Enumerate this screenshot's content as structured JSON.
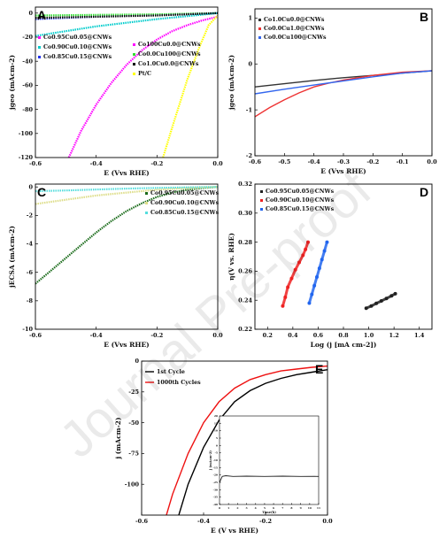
{
  "watermark": "Journal Pre-proof",
  "chart_data": [
    {
      "panel": "A",
      "type": "line",
      "xlabel": "E (Vvs RHE)",
      "ylabel": "jgeo (mAcm-2)",
      "xlim": [
        -0.6,
        0.0
      ],
      "ylim": [
        -120,
        5
      ],
      "xticks": [
        "-0.6",
        "-0.4",
        "-0.2",
        "0.0"
      ],
      "xtick_values": [
        -0.6,
        -0.4,
        -0.2,
        0.0
      ],
      "yticks": [
        "0",
        "-20",
        "-40",
        "-60",
        "-80",
        "-100",
        "-120"
      ],
      "ytick_values": [
        0,
        -20,
        -40,
        -60,
        -80,
        -100,
        -120
      ],
      "legend_left": [
        "Co0.95Cu0.05@CNWs",
        "Co0.90Cu0.10@CNWs",
        "Co0.85Cu0.15@CNWs"
      ],
      "legend_right": [
        "Co100Cu0.0@CNWs",
        "Co0.0Cu100@CNWs",
        "Co1.0Cu0.0@CNWs",
        "Pt/C"
      ],
      "series": [
        {
          "name": "Co0.95Cu0.05@CNWs",
          "color": "#ff00ff",
          "x": [
            -0.49,
            -0.45,
            -0.4,
            -0.35,
            -0.3,
            -0.25,
            -0.2,
            -0.15,
            -0.1,
            -0.05,
            0.0
          ],
          "y": [
            -120,
            -98,
            -76,
            -58,
            -43,
            -31,
            -22,
            -15,
            -10,
            -6,
            -3
          ]
        },
        {
          "name": "Co0.90Cu0.10@CNWs",
          "color": "#00cccc",
          "x": [
            -0.6,
            -0.5,
            -0.4,
            -0.3,
            -0.2,
            -0.1,
            0.0
          ],
          "y": [
            -19,
            -15,
            -11,
            -8,
            -5,
            -2.5,
            0
          ]
        },
        {
          "name": "Co0.85Cu0.15@CNWs",
          "color": "#2233ee",
          "x": [
            -0.6,
            -0.5,
            -0.4,
            -0.3,
            -0.2,
            -0.1,
            0.0
          ],
          "y": [
            -5,
            -4,
            -3,
            -2.2,
            -1.5,
            -0.7,
            0
          ]
        },
        {
          "name": "Co0.0Cu100@CNWs",
          "color": "#33dd33",
          "x": [
            -0.6,
            -0.4,
            -0.2,
            0.0
          ],
          "y": [
            -2,
            -1.5,
            -1,
            0
          ]
        },
        {
          "name": "Co1.0Cu0.0@CNWs",
          "color": "#000000",
          "x": [
            -0.6,
            -0.4,
            -0.2,
            0.0
          ],
          "y": [
            -4,
            -3,
            -2,
            0
          ]
        },
        {
          "name": "Pt/C",
          "color": "#ffff00",
          "x": [
            -0.18,
            -0.15,
            -0.1,
            -0.06,
            -0.03,
            0.0
          ],
          "y": [
            -120,
            -95,
            -55,
            -28,
            -10,
            -2
          ]
        }
      ]
    },
    {
      "panel": "B",
      "type": "line",
      "xlabel": "E (Vvs RHE)",
      "ylabel": "jgeo (mAcm-2)",
      "xlim": [
        -0.6,
        0.0
      ],
      "ylim": [
        -2,
        1.2
      ],
      "xticks": [
        "-0.6",
        "-0.5",
        "-0.4",
        "-0.3",
        "-0.2",
        "-0.1",
        "0.0"
      ],
      "xtick_values": [
        -0.6,
        -0.5,
        -0.4,
        -0.3,
        -0.2,
        -0.1,
        0.0
      ],
      "yticks": [
        "1",
        "0",
        "-1",
        "-2"
      ],
      "ytick_values": [
        1,
        0,
        -1,
        -2
      ],
      "legend": [
        "Co1.0Cu0.0@CNWs",
        "Co0.0Cu1.0@CNWs",
        "Co0.0Cu100@CNWs"
      ],
      "series": [
        {
          "name": "Co1.0Cu0.0@CNWs",
          "color": "#333333",
          "x": [
            -0.6,
            -0.5,
            -0.4,
            -0.3,
            -0.2,
            -0.1,
            0.0
          ],
          "y": [
            -0.5,
            -0.43,
            -0.36,
            -0.3,
            -0.25,
            -0.2,
            -0.15
          ]
        },
        {
          "name": "Co0.0Cu1.0@CNWs",
          "color": "#ee3333",
          "x": [
            -0.6,
            -0.55,
            -0.5,
            -0.45,
            -0.4,
            -0.35,
            -0.3,
            -0.2,
            -0.1,
            0.0
          ],
          "y": [
            -1.15,
            -0.95,
            -0.78,
            -0.63,
            -0.5,
            -0.42,
            -0.35,
            -0.25,
            -0.18,
            -0.15
          ]
        },
        {
          "name": "Co0.0Cu100@CNWs",
          "color": "#3366ee",
          "x": [
            -0.6,
            -0.5,
            -0.4,
            -0.3,
            -0.2,
            -0.1,
            0.0
          ],
          "y": [
            -0.65,
            -0.55,
            -0.46,
            -0.37,
            -0.28,
            -0.2,
            -0.15
          ]
        }
      ]
    },
    {
      "panel": "C",
      "type": "line",
      "xlabel": "E (Vvs RHE)",
      "ylabel": "jECSA (mAcm-2)",
      "xlim": [
        -0.6,
        0.0
      ],
      "ylim": [
        -10,
        0.2
      ],
      "xticks": [
        "-0.6",
        "-0.4",
        "-0.2",
        "0.0"
      ],
      "xtick_values": [
        -0.6,
        -0.4,
        -0.2,
        0.0
      ],
      "yticks": [
        "0",
        "-2",
        "-4",
        "-6",
        "-8",
        "-10"
      ],
      "ytick_values": [
        0,
        -2,
        -4,
        -6,
        -8,
        -10
      ],
      "legend": [
        "Co0.95Cu0.05@CNWs",
        "Co0.90Cu0.10@CNWs",
        "Co0.85Cu0.15@CNWs"
      ],
      "series": [
        {
          "name": "Co0.95Cu0.05@CNWs",
          "color": "#1a6b1a",
          "x": [
            -0.6,
            -0.55,
            -0.5,
            -0.45,
            -0.4,
            -0.35,
            -0.3,
            -0.25,
            -0.2,
            -0.15,
            -0.1,
            -0.05,
            0.0
          ],
          "y": [
            -6.8,
            -5.9,
            -5.0,
            -4.1,
            -3.2,
            -2.4,
            -1.7,
            -1.15,
            -0.7,
            -0.4,
            -0.2,
            -0.08,
            0
          ]
        },
        {
          "name": "Co0.90Cu0.10@CNWs",
          "color": "#dddd88",
          "x": [
            -0.6,
            -0.5,
            -0.4,
            -0.3,
            -0.2,
            -0.1,
            0.0
          ],
          "y": [
            -1.2,
            -0.9,
            -0.6,
            -0.4,
            -0.2,
            -0.08,
            0
          ]
        },
        {
          "name": "Co0.85Cu0.15@CNWs",
          "color": "#55dddd",
          "x": [
            -0.6,
            -0.5,
            -0.4,
            -0.3,
            -0.2,
            -0.1,
            0.0
          ],
          "y": [
            -0.3,
            -0.25,
            -0.18,
            -0.12,
            -0.07,
            -0.03,
            0
          ]
        }
      ]
    },
    {
      "panel": "D",
      "type": "scatter",
      "xlabel": "Log (j [mA cm-2])",
      "ylabel": "η(V vs. RHE)",
      "xlim": [
        0.1,
        1.5
      ],
      "ylim": [
        0.22,
        0.32
      ],
      "xticks": [
        "0.2",
        "0.4",
        "0.6",
        "0.8",
        "1.0",
        "1.2",
        "1.4"
      ],
      "xtick_values": [
        0.2,
        0.4,
        0.6,
        0.8,
        1.0,
        1.2,
        1.4
      ],
      "yticks": [
        "0.32",
        "0.30",
        "0.28",
        "0.26",
        "0.24",
        "0.22"
      ],
      "ytick_values": [
        0.32,
        0.3,
        0.28,
        0.26,
        0.24,
        0.22
      ],
      "legend": [
        "Co0.95Cu0.05@CNWs",
        "Co0.90Cu0.10@CNWs",
        "Co0.85Cu0.15@CNWs"
      ],
      "series": [
        {
          "name": "Co0.95Cu0.05@CNWs",
          "color": "#222222",
          "x": [
            0.98,
            1.02,
            1.06,
            1.1,
            1.14,
            1.18,
            1.21
          ],
          "y": [
            0.2345,
            0.236,
            0.2378,
            0.2395,
            0.2412,
            0.243,
            0.2445
          ]
        },
        {
          "name": "Co0.90Cu0.10@CNWs",
          "color": "#ee2222",
          "x": [
            0.32,
            0.34,
            0.36,
            0.39,
            0.42,
            0.45,
            0.48,
            0.5,
            0.52
          ],
          "y": [
            0.236,
            0.242,
            0.249,
            0.255,
            0.261,
            0.266,
            0.271,
            0.275,
            0.28
          ]
        },
        {
          "name": "Co0.85Cu0.15@CNWs",
          "color": "#2266ee",
          "x": [
            0.53,
            0.55,
            0.57,
            0.59,
            0.61,
            0.63,
            0.65,
            0.67
          ],
          "y": [
            0.238,
            0.244,
            0.25,
            0.256,
            0.262,
            0.268,
            0.274,
            0.28
          ]
        }
      ]
    },
    {
      "panel": "E",
      "type": "line",
      "xlabel": "E (V vs RHE)",
      "ylabel": "j (mAcm-2)",
      "xlim": [
        -0.6,
        0.0
      ],
      "ylim": [
        -125,
        0
      ],
      "xticks": [
        "-0.6",
        "-0.4",
        "-0.2",
        "0.0"
      ],
      "xtick_values": [
        -0.6,
        -0.4,
        -0.2,
        0.0
      ],
      "yticks": [
        "0",
        "-25",
        "-50",
        "-75",
        "-100"
      ],
      "ytick_values": [
        0,
        -25,
        -50,
        -75,
        -100
      ],
      "legend": [
        "1st Cycle",
        "1000th Cycles"
      ],
      "series": [
        {
          "name": "1st Cycle",
          "color": "#000000",
          "x": [
            -0.48,
            -0.45,
            -0.4,
            -0.35,
            -0.3,
            -0.25,
            -0.2,
            -0.15,
            -0.1,
            -0.05,
            0.0
          ],
          "y": [
            -125,
            -100,
            -70,
            -48,
            -33,
            -24,
            -18,
            -14,
            -11,
            -9,
            -7
          ]
        },
        {
          "name": "1000th Cycles",
          "color": "#ee1111",
          "x": [
            -0.52,
            -0.5,
            -0.45,
            -0.4,
            -0.35,
            -0.3,
            -0.25,
            -0.2,
            -0.15,
            -0.1,
            -0.05,
            0.0
          ],
          "y": [
            -125,
            -108,
            -75,
            -50,
            -33,
            -22,
            -15,
            -11,
            -8,
            -6.5,
            -5,
            -4
          ]
        }
      ],
      "inset": {
        "xlabel": "Time(h)",
        "ylabel": "j (mAcm-2)",
        "xlim": [
          0,
          11
        ],
        "ylim": [
          -40,
          20
        ],
        "xticks": [
          "0",
          "1",
          "2",
          "3",
          "4",
          "5",
          "6",
          "7",
          "8",
          "9",
          "10",
          "11"
        ],
        "xtick_values": [
          0,
          1,
          2,
          3,
          4,
          5,
          6,
          7,
          8,
          9,
          10,
          11
        ],
        "yticks": [
          "20",
          "15",
          "10",
          "5",
          "0",
          "-5",
          "-10",
          "-15",
          "-20",
          "-25",
          "-30",
          "-35",
          "-40"
        ],
        "ytick_values": [
          20,
          15,
          10,
          5,
          0,
          -5,
          -10,
          -15,
          -20,
          -25,
          -30,
          -35,
          -40
        ],
        "series": [
          {
            "name": "",
            "color": "#222222",
            "x": [
              0,
              0.3,
              0.7,
              1.5,
              3,
              5,
              7,
              9,
              10.5,
              11
            ],
            "y": [
              -25,
              -21,
              -20.5,
              -21,
              -20.8,
              -21,
              -20.8,
              -21,
              -20.9,
              -21
            ]
          }
        ]
      }
    }
  ]
}
